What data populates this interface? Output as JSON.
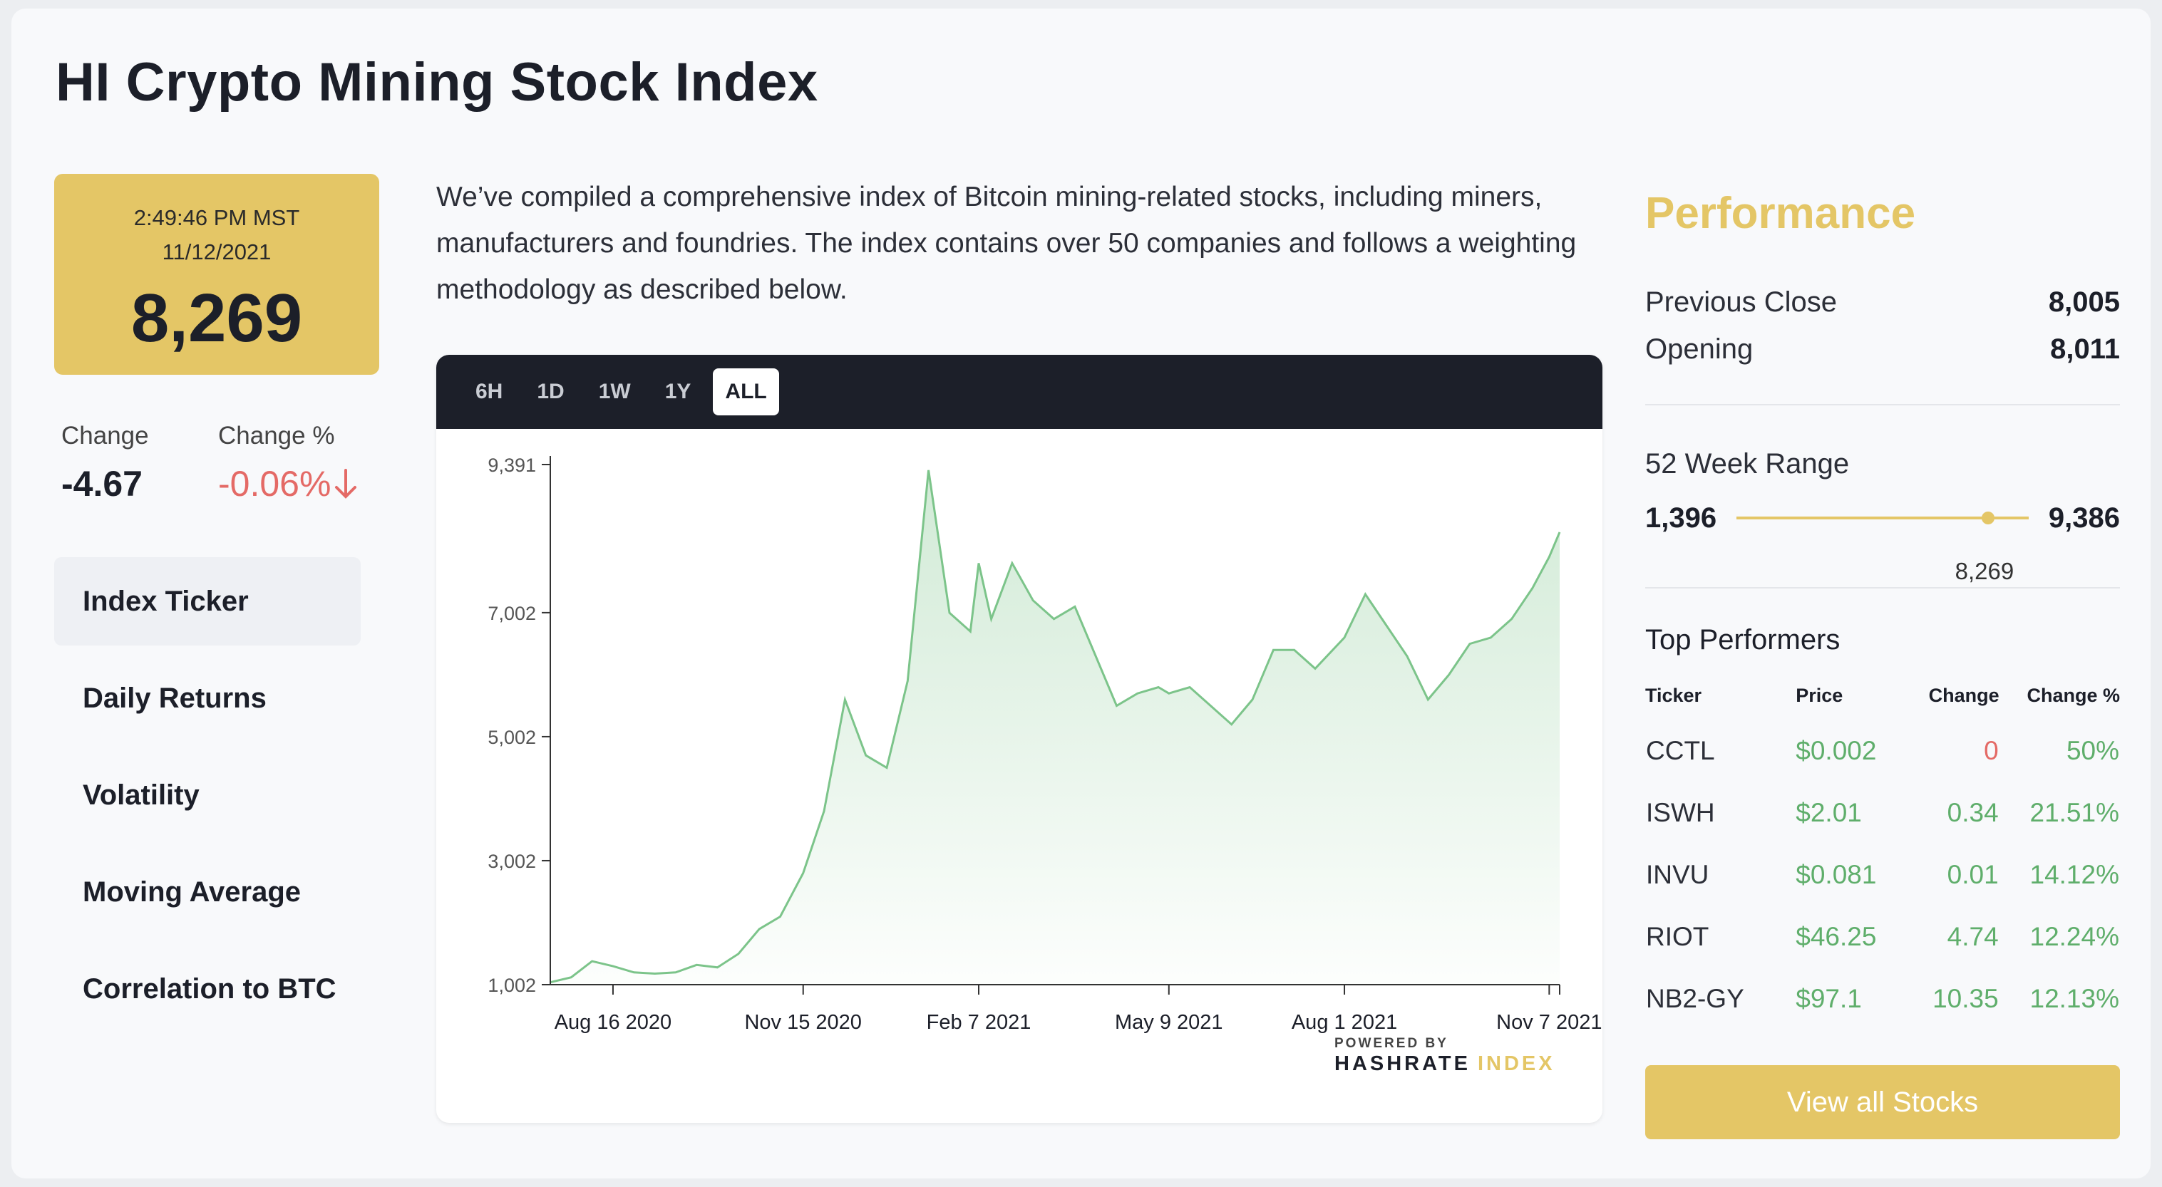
{
  "page": {
    "title": "HI Crypto Mining Stock Index"
  },
  "price": {
    "time": "2:49:46 PM MST",
    "date": "11/12/2021",
    "value": "8,269"
  },
  "change": {
    "label": "Change",
    "value": "-4.67",
    "pct_label": "Change %",
    "pct_value": "-0.06%",
    "direction_icon": "arrow-down-icon"
  },
  "nav": [
    "Index Ticker",
    "Daily Returns",
    "Volatility",
    "Moving Average",
    "Correlation to BTC"
  ],
  "description": "We’ve compiled a comprehensive index of Bitcoin mining-related stocks, including miners, manufacturers and foundries. The index contains over 50 companies and follows a weighting methodology as described below.",
  "ranges": [
    "6H",
    "1D",
    "1W",
    "1Y",
    "ALL"
  ],
  "active_range": "ALL",
  "branding": {
    "powered": "POWERED BY",
    "name": "HASHRATE",
    "accent": "INDEX"
  },
  "performance": {
    "title": "Performance",
    "previous_close_label": "Previous Close",
    "previous_close": "8,005",
    "opening_label": "Opening",
    "opening": "8,011",
    "range_label": "52 Week Range",
    "range_low": "1,396",
    "range_high": "9,386",
    "range_current": "8,269",
    "range_low_value": 1396,
    "range_high_value": 9386,
    "range_current_value": 8269
  },
  "top_performers": {
    "title": "Top Performers",
    "headers": [
      "Ticker",
      "Price",
      "Change",
      "Change %"
    ],
    "rows": [
      [
        "CCTL",
        "$0.002",
        "0",
        "50%"
      ],
      [
        "ISWH",
        "$2.01",
        "0.34",
        "21.51%"
      ],
      [
        "INVU",
        "$0.081",
        "0.01",
        "14.12%"
      ],
      [
        "RIOT",
        "$46.25",
        "4.74",
        "12.24%"
      ],
      [
        "NB2-GY",
        "$97.1",
        "10.35",
        "12.13%"
      ]
    ],
    "button": "View all Stocks"
  },
  "colors": {
    "accent": "#e4c666",
    "positive": "#5fae6b",
    "negative": "#e46a66",
    "line": "#7cc48a"
  },
  "chart_data": {
    "type": "area",
    "x_ticks": [
      "Aug 16 2020",
      "Nov 15 2020",
      "Feb 7 2021",
      "May 9 2021",
      "Aug 1 2021",
      "Nov 7 2021"
    ],
    "y_ticks": [
      "1,002",
      "3,002",
      "5,002",
      "7,002",
      "9,391"
    ],
    "y_tick_values": [
      1002,
      3002,
      5002,
      7002,
      9391
    ],
    "ylim": [
      1002,
      9391
    ],
    "xlim": [
      "2020-07-17",
      "2021-11-12"
    ],
    "x": [
      "2020-07-17",
      "2020-07-27",
      "2020-08-06",
      "2020-08-16",
      "2020-08-26",
      "2020-09-05",
      "2020-09-15",
      "2020-09-25",
      "2020-10-05",
      "2020-10-15",
      "2020-10-25",
      "2020-11-04",
      "2020-11-15",
      "2020-11-25",
      "2020-12-05",
      "2020-12-15",
      "2020-12-25",
      "2021-01-04",
      "2021-01-14",
      "2021-01-24",
      "2021-02-03",
      "2021-02-07",
      "2021-02-13",
      "2021-02-23",
      "2021-03-05",
      "2021-03-15",
      "2021-03-25",
      "2021-04-04",
      "2021-04-14",
      "2021-04-24",
      "2021-05-04",
      "2021-05-09",
      "2021-05-19",
      "2021-05-29",
      "2021-06-08",
      "2021-06-18",
      "2021-06-28",
      "2021-07-08",
      "2021-07-18",
      "2021-08-01",
      "2021-08-11",
      "2021-08-21",
      "2021-08-31",
      "2021-09-10",
      "2021-09-20",
      "2021-09-30",
      "2021-10-10",
      "2021-10-20",
      "2021-10-30",
      "2021-11-07",
      "2021-11-12"
    ],
    "values": [
      1040,
      1120,
      1380,
      1300,
      1200,
      1180,
      1200,
      1320,
      1280,
      1500,
      1900,
      2100,
      2800,
      3800,
      5600,
      4700,
      4500,
      5900,
      9300,
      7000,
      6700,
      7800,
      6900,
      7800,
      7200,
      6900,
      7100,
      6300,
      5500,
      5700,
      5800,
      5700,
      5800,
      5500,
      5200,
      5600,
      6400,
      6400,
      6100,
      6600,
      7300,
      6800,
      6300,
      5600,
      6000,
      6500,
      6600,
      6900,
      7400,
      7900,
      8300
    ],
    "grid": false,
    "legend": "none"
  }
}
